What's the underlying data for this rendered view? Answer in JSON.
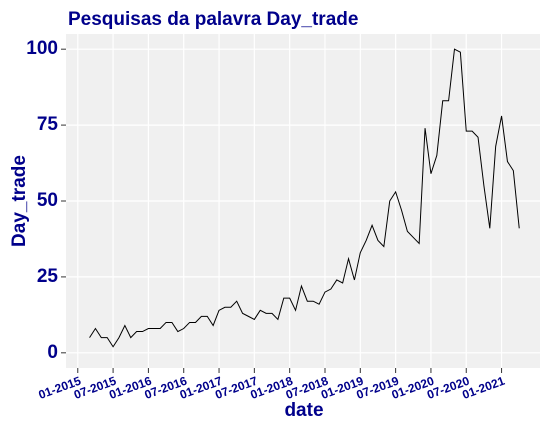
{
  "chart_data": {
    "type": "line",
    "title": "Pesquisas da palavra Day_trade",
    "x_label": "date",
    "y_label": "Day_trade",
    "x": [
      "03-2015",
      "04-2015",
      "05-2015",
      "06-2015",
      "07-2015",
      "08-2015",
      "09-2015",
      "10-2015",
      "11-2015",
      "12-2015",
      "01-2016",
      "02-2016",
      "03-2016",
      "04-2016",
      "05-2016",
      "06-2016",
      "07-2016",
      "08-2016",
      "09-2016",
      "10-2016",
      "11-2016",
      "12-2016",
      "01-2017",
      "02-2017",
      "03-2017",
      "04-2017",
      "05-2017",
      "06-2017",
      "07-2017",
      "08-2017",
      "09-2017",
      "10-2017",
      "11-2017",
      "12-2017",
      "01-2018",
      "02-2018",
      "03-2018",
      "04-2018",
      "05-2018",
      "06-2018",
      "07-2018",
      "08-2018",
      "09-2018",
      "10-2018",
      "11-2018",
      "12-2018",
      "01-2019",
      "02-2019",
      "03-2019",
      "04-2019",
      "05-2019",
      "06-2019",
      "07-2019",
      "08-2019",
      "09-2019",
      "10-2019",
      "11-2019",
      "12-2019",
      "01-2020",
      "02-2020",
      "03-2020",
      "04-2020",
      "05-2020",
      "06-2020",
      "07-2020",
      "08-2020",
      "09-2020",
      "10-2020",
      "11-2020",
      "12-2020",
      "01-2021",
      "02-2021",
      "03-2021",
      "04-2021"
    ],
    "series": [
      {
        "name": "Day_trade",
        "color": "#000000",
        "values": [
          5,
          8,
          5,
          5,
          2,
          5,
          9,
          5,
          7,
          7,
          8,
          8,
          8,
          10,
          10,
          7,
          8,
          10,
          10,
          12,
          12,
          9,
          14,
          15,
          15,
          17,
          13,
          12,
          11,
          14,
          13,
          13,
          11,
          18,
          18,
          14,
          22,
          17,
          17,
          16,
          20,
          21,
          24,
          23,
          31,
          24,
          33,
          37,
          42,
          37,
          35,
          50,
          53,
          47,
          40,
          38,
          36,
          74,
          59,
          65,
          83,
          83,
          100,
          99,
          73,
          73,
          71,
          55,
          41,
          68,
          78,
          63,
          60,
          41
        ]
      }
    ],
    "xlim": [
      "11-2014",
      "06-2021"
    ],
    "xticks": [
      "01-2015",
      "07-2015",
      "01-2016",
      "07-2016",
      "01-2017",
      "07-2017",
      "01-2018",
      "07-2018",
      "01-2019",
      "07-2019",
      "01-2020",
      "07-2020",
      "01-2021"
    ],
    "ylim": [
      -5,
      105
    ],
    "yticks": [
      0,
      25,
      50,
      75,
      100
    ],
    "grid": true
  }
}
